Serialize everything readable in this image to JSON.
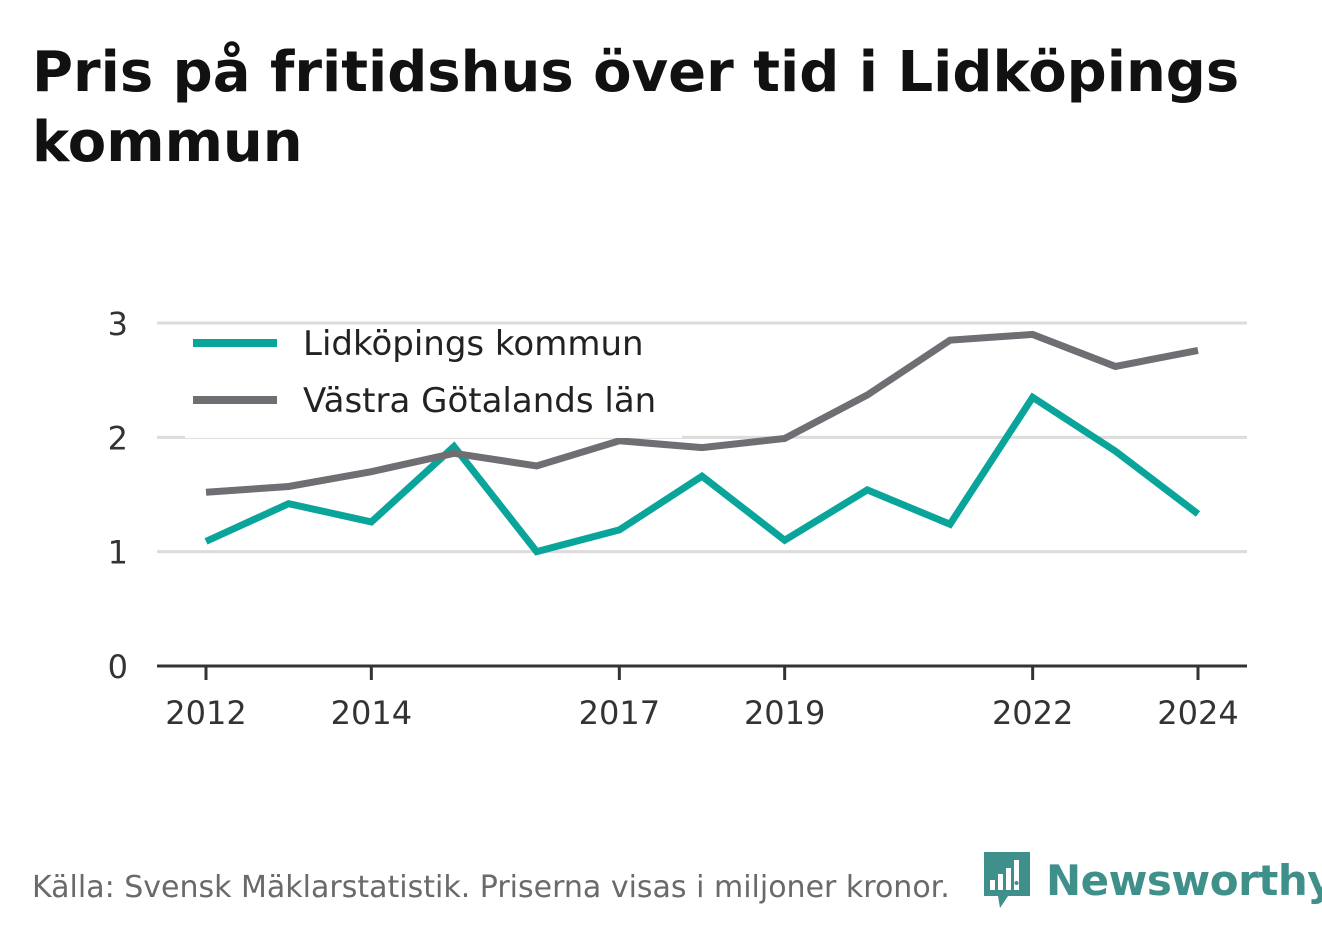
{
  "title": "Pris på fritidshus över tid i Lidköpings kommun",
  "footer": {
    "source": "Källa: Svensk Mäklarstatistik. Priserna visas i miljoner kronor."
  },
  "logo": {
    "text": "Newsworthy",
    "icon": "bar-chart-speech-bubble-icon",
    "color": "#3f8f8b"
  },
  "chart_data": {
    "type": "line",
    "title": "Pris på fritidshus över tid i Lidköpings kommun",
    "xlabel": "",
    "ylabel": "",
    "x": [
      2012,
      2013,
      2014,
      2015,
      2016,
      2017,
      2018,
      2019,
      2020,
      2021,
      2022,
      2023,
      2024
    ],
    "xticks": [
      2012,
      2014,
      2017,
      2019,
      2022,
      2024
    ],
    "yticks": [
      0,
      1,
      2,
      3
    ],
    "ylim": [
      0,
      3
    ],
    "grid": true,
    "legend_position": "top-left",
    "series": [
      {
        "name": "Lidköpings kommun",
        "color": "#0aa59a",
        "values": [
          1.09,
          1.42,
          1.26,
          1.92,
          1.0,
          1.19,
          1.66,
          1.1,
          1.54,
          1.24,
          2.35,
          1.88,
          1.33
        ]
      },
      {
        "name": "Västra Götalands län",
        "color": "#6f6e73",
        "values": [
          1.52,
          1.57,
          1.7,
          1.86,
          1.75,
          1.97,
          1.91,
          1.99,
          2.37,
          2.85,
          2.9,
          2.62,
          2.76
        ]
      }
    ]
  }
}
